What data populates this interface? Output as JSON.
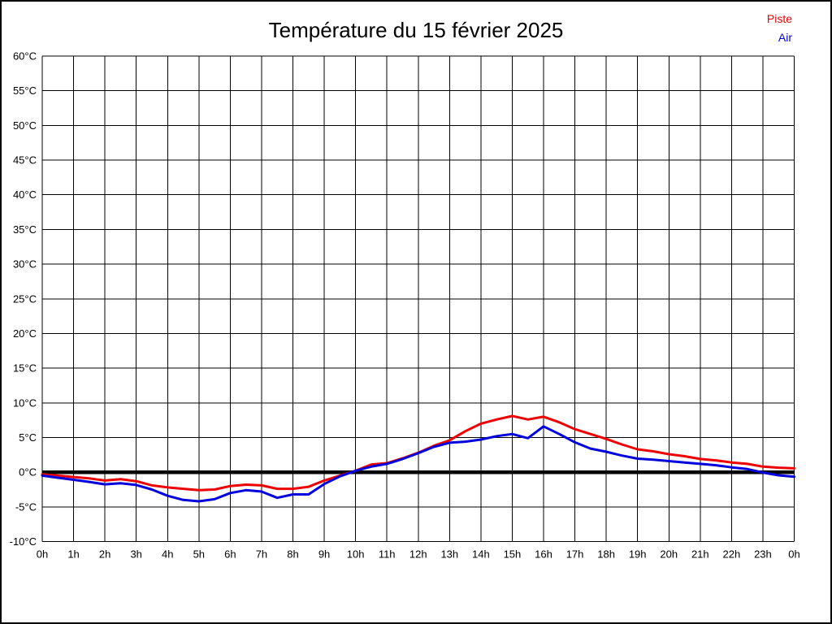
{
  "header": {
    "title": "Température du 15 février 2025"
  },
  "legend": {
    "items": [
      {
        "label": "Piste",
        "color": "#ee0000"
      },
      {
        "label": "Air",
        "color": "#0000dd"
      }
    ]
  },
  "chart_data": {
    "type": "line",
    "title": "Température du 15 février 2025",
    "xlabel": "",
    "ylabel": "",
    "ylim": [
      -10,
      60
    ],
    "ytick_step": 5,
    "grid": true,
    "legend_position": "top-right",
    "axis_color": "#000000",
    "zero_line_value": 0,
    "ytick_labels": [
      "60°C",
      "55°C",
      "50°C",
      "45°C",
      "40°C",
      "35°C",
      "30°C",
      "25°C",
      "20°C",
      "15°C",
      "10°C",
      "5°C",
      "0°C",
      "-5°C",
      "-10°C"
    ],
    "xtick_labels": [
      "0h",
      "1h",
      "2h",
      "3h",
      "4h",
      "5h",
      "6h",
      "7h",
      "8h",
      "9h",
      "10h",
      "11h",
      "12h",
      "13h",
      "14h",
      "15h",
      "16h",
      "17h",
      "18h",
      "19h",
      "20h",
      "21h",
      "22h",
      "23h",
      "0h"
    ],
    "x_hours": [
      0,
      0.5,
      1,
      1.5,
      2,
      2.5,
      3,
      3.5,
      4,
      4.5,
      5,
      5.5,
      6,
      6.5,
      7,
      7.5,
      8,
      8.5,
      9,
      9.5,
      10,
      10.5,
      11,
      11.5,
      12,
      12.5,
      13,
      13.5,
      14,
      14.5,
      15,
      15.5,
      16,
      16.5,
      17,
      17.5,
      18,
      18.5,
      19,
      19.5,
      20,
      20.5,
      21,
      21.5,
      22,
      22.5,
      23,
      23.5,
      24
    ],
    "series": [
      {
        "name": "Piste",
        "color": "#ee0000",
        "values": [
          -0.3,
          -0.5,
          -0.7,
          -0.9,
          -1.2,
          -1.0,
          -1.3,
          -1.9,
          -2.2,
          -2.4,
          -2.6,
          -2.5,
          -2.0,
          -1.8,
          -1.9,
          -2.4,
          -2.4,
          -2.1,
          -1.2,
          -0.5,
          0.2,
          1.1,
          1.3,
          2.0,
          2.8,
          3.8,
          4.6,
          5.9,
          7.0,
          7.6,
          8.1,
          7.6,
          8.0,
          7.2,
          6.2,
          5.5,
          4.8,
          4.0,
          3.3,
          3.0,
          2.6,
          2.3,
          1.9,
          1.7,
          1.4,
          1.2,
          0.8,
          0.65,
          0.55
        ]
      },
      {
        "name": "Air",
        "color": "#0000dd",
        "values": [
          -0.5,
          -0.8,
          -1.1,
          -1.4,
          -1.75,
          -1.6,
          -1.85,
          -2.5,
          -3.4,
          -4.0,
          -4.2,
          -3.9,
          -3.0,
          -2.6,
          -2.8,
          -3.7,
          -3.2,
          -3.2,
          -1.7,
          -0.6,
          0.2,
          0.8,
          1.2,
          1.9,
          2.75,
          3.65,
          4.25,
          4.4,
          4.7,
          5.2,
          5.5,
          4.9,
          6.6,
          5.5,
          4.3,
          3.4,
          2.95,
          2.4,
          1.95,
          1.8,
          1.6,
          1.4,
          1.2,
          1.0,
          0.7,
          0.45,
          -0.05,
          -0.45,
          -0.65
        ]
      }
    ]
  }
}
